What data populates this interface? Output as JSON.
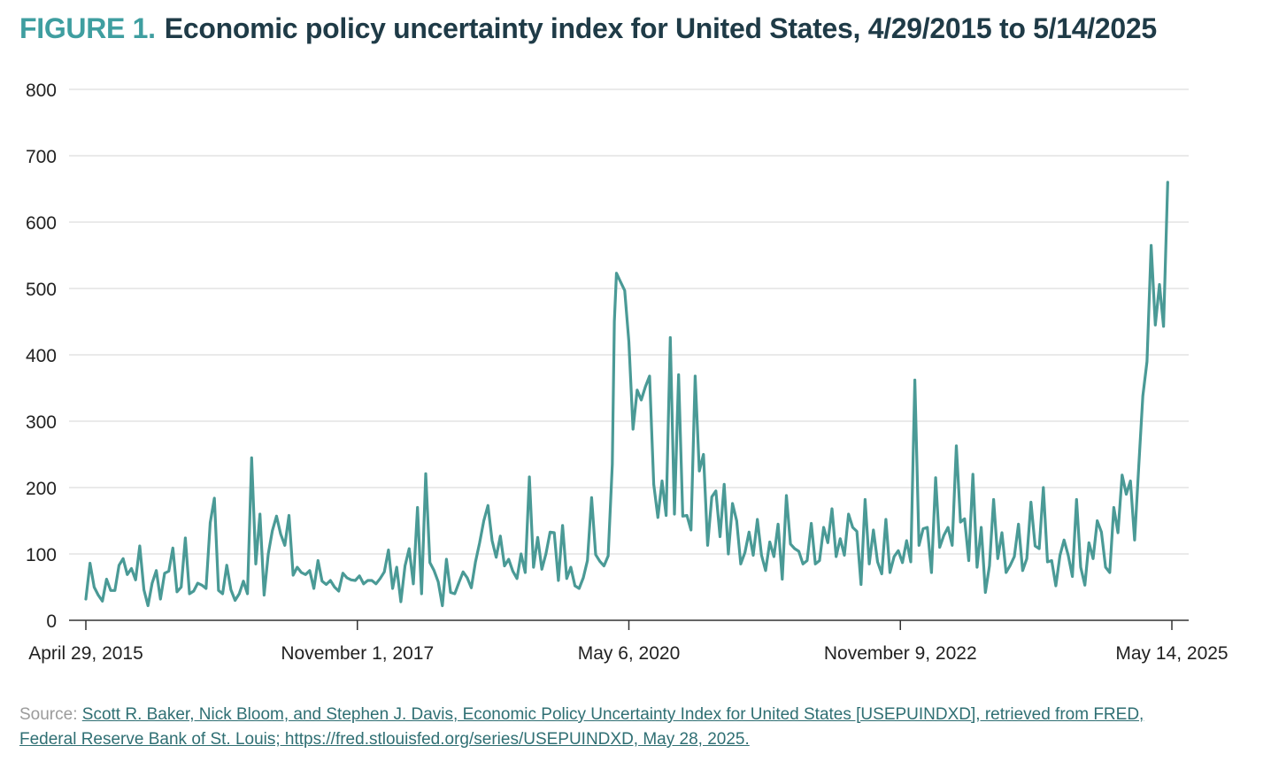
{
  "title": {
    "figure_label": "FIGURE 1.",
    "text": "Economic policy uncertainty index for United States, 4/29/2015 to 5/14/2025"
  },
  "source": {
    "prefix": "Source: ",
    "link_text": "Scott R. Baker, Nick Bloom, and Stephen J. Davis, Economic Policy Uncertainty Index for United States [USEPUINDXD], retrieved from FRED, Federal Reserve Bank of St. Louis; https://fred.stlouisfed.org/series/USEPUINDXD, May 28, 2025."
  },
  "colors": {
    "line": "#4a9a96",
    "grid": "#e3e3e3",
    "axis": "#333333",
    "title_accent": "#3f9ea0",
    "title_main": "#1f3b47"
  },
  "chart_data": {
    "type": "line",
    "xlabel": "",
    "ylabel": "",
    "ylim": [
      0,
      800
    ],
    "yticks": [
      0,
      100,
      200,
      300,
      400,
      500,
      600,
      700,
      800
    ],
    "xlim": [
      "2015-04-29",
      "2025-05-14"
    ],
    "xticks": [
      {
        "date": "2015-04-29",
        "label": "April 29, 2015"
      },
      {
        "date": "2017-11-01",
        "label": "November 1, 2017"
      },
      {
        "date": "2020-05-06",
        "label": "May 6, 2020"
      },
      {
        "date": "2022-11-09",
        "label": "November 9, 2022"
      },
      {
        "date": "2025-05-14",
        "label": "May 14, 2025"
      }
    ],
    "grid": true,
    "series": [
      {
        "points": [
          [
            "2015-04-29",
            32
          ],
          [
            "2015-05-13",
            86
          ],
          [
            "2015-05-27",
            50
          ],
          [
            "2015-06-10",
            38
          ],
          [
            "2015-06-24",
            29
          ],
          [
            "2015-07-08",
            62
          ],
          [
            "2015-07-22",
            45
          ],
          [
            "2015-08-05",
            45
          ],
          [
            "2015-08-19",
            83
          ],
          [
            "2015-09-02",
            93
          ],
          [
            "2015-09-16",
            69
          ],
          [
            "2015-09-30",
            78
          ],
          [
            "2015-10-14",
            61
          ],
          [
            "2015-10-28",
            112
          ],
          [
            "2015-11-11",
            46
          ],
          [
            "2015-11-25",
            22
          ],
          [
            "2015-12-09",
            56
          ],
          [
            "2015-12-23",
            75
          ],
          [
            "2016-01-06",
            32
          ],
          [
            "2016-01-20",
            71
          ],
          [
            "2016-02-03",
            74
          ],
          [
            "2016-02-17",
            109
          ],
          [
            "2016-03-02",
            43
          ],
          [
            "2016-03-16",
            50
          ],
          [
            "2016-03-30",
            124
          ],
          [
            "2016-04-13",
            40
          ],
          [
            "2016-04-27",
            44
          ],
          [
            "2016-05-11",
            56
          ],
          [
            "2016-05-25",
            53
          ],
          [
            "2016-06-08",
            48
          ],
          [
            "2016-06-22",
            147
          ],
          [
            "2016-07-06",
            184
          ],
          [
            "2016-07-20",
            45
          ],
          [
            "2016-08-03",
            40
          ],
          [
            "2016-08-17",
            83
          ],
          [
            "2016-08-31",
            46
          ],
          [
            "2016-09-14",
            30
          ],
          [
            "2016-09-28",
            40
          ],
          [
            "2016-10-12",
            59
          ],
          [
            "2016-10-26",
            40
          ],
          [
            "2016-11-09",
            245
          ],
          [
            "2016-11-23",
            85
          ],
          [
            "2016-12-07",
            160
          ],
          [
            "2016-12-21",
            38
          ],
          [
            "2017-01-04",
            100
          ],
          [
            "2017-01-18",
            135
          ],
          [
            "2017-02-01",
            157
          ],
          [
            "2017-02-15",
            130
          ],
          [
            "2017-03-01",
            113
          ],
          [
            "2017-03-15",
            158
          ],
          [
            "2017-03-29",
            68
          ],
          [
            "2017-04-12",
            80
          ],
          [
            "2017-04-26",
            72
          ],
          [
            "2017-05-10",
            69
          ],
          [
            "2017-05-24",
            75
          ],
          [
            "2017-06-07",
            48
          ],
          [
            "2017-06-21",
            90
          ],
          [
            "2017-07-05",
            59
          ],
          [
            "2017-07-19",
            54
          ],
          [
            "2017-08-02",
            60
          ],
          [
            "2017-08-16",
            50
          ],
          [
            "2017-08-30",
            44
          ],
          [
            "2017-09-13",
            71
          ],
          [
            "2017-09-27",
            64
          ],
          [
            "2017-10-11",
            61
          ],
          [
            "2017-10-25",
            60
          ],
          [
            "2017-11-08",
            67
          ],
          [
            "2017-11-22",
            55
          ],
          [
            "2017-12-06",
            60
          ],
          [
            "2017-12-20",
            60
          ],
          [
            "2018-01-03",
            55
          ],
          [
            "2018-01-17",
            63
          ],
          [
            "2018-01-31",
            73
          ],
          [
            "2018-02-14",
            106
          ],
          [
            "2018-02-28",
            48
          ],
          [
            "2018-03-14",
            80
          ],
          [
            "2018-03-28",
            28
          ],
          [
            "2018-04-11",
            82
          ],
          [
            "2018-04-25",
            108
          ],
          [
            "2018-05-09",
            55
          ],
          [
            "2018-05-23",
            170
          ],
          [
            "2018-06-06",
            40
          ],
          [
            "2018-06-20",
            221
          ],
          [
            "2018-07-04",
            87
          ],
          [
            "2018-07-18",
            75
          ],
          [
            "2018-08-01",
            58
          ],
          [
            "2018-08-15",
            22
          ],
          [
            "2018-08-29",
            92
          ],
          [
            "2018-09-12",
            42
          ],
          [
            "2018-09-26",
            40
          ],
          [
            "2018-10-10",
            57
          ],
          [
            "2018-10-24",
            73
          ],
          [
            "2018-11-07",
            64
          ],
          [
            "2018-11-21",
            49
          ],
          [
            "2018-12-05",
            88
          ],
          [
            "2018-12-19",
            117
          ],
          [
            "2019-01-02",
            150
          ],
          [
            "2019-01-16",
            173
          ],
          [
            "2019-01-30",
            120
          ],
          [
            "2019-02-13",
            95
          ],
          [
            "2019-02-27",
            127
          ],
          [
            "2019-03-13",
            82
          ],
          [
            "2019-03-27",
            92
          ],
          [
            "2019-04-10",
            74
          ],
          [
            "2019-04-24",
            63
          ],
          [
            "2019-05-08",
            100
          ],
          [
            "2019-05-22",
            72
          ],
          [
            "2019-06-05",
            216
          ],
          [
            "2019-06-19",
            80
          ],
          [
            "2019-07-03",
            125
          ],
          [
            "2019-07-17",
            77
          ],
          [
            "2019-07-31",
            100
          ],
          [
            "2019-08-14",
            133
          ],
          [
            "2019-08-28",
            132
          ],
          [
            "2019-09-11",
            60
          ],
          [
            "2019-09-25",
            143
          ],
          [
            "2019-10-09",
            63
          ],
          [
            "2019-10-23",
            80
          ],
          [
            "2019-11-06",
            52
          ],
          [
            "2019-11-20",
            48
          ],
          [
            "2019-12-04",
            64
          ],
          [
            "2019-12-18",
            90
          ],
          [
            "2020-01-01",
            185
          ],
          [
            "2020-01-15",
            99
          ],
          [
            "2020-01-29",
            89
          ],
          [
            "2020-02-12",
            82
          ],
          [
            "2020-02-26",
            97
          ],
          [
            "2020-03-11",
            235
          ],
          [
            "2020-03-18",
            450
          ],
          [
            "2020-03-25",
            523
          ],
          [
            "2020-04-08",
            510
          ],
          [
            "2020-04-22",
            497
          ],
          [
            "2020-05-06",
            420
          ],
          [
            "2020-05-20",
            288
          ],
          [
            "2020-06-03",
            347
          ],
          [
            "2020-06-17",
            332
          ],
          [
            "2020-07-01",
            352
          ],
          [
            "2020-07-15",
            368
          ],
          [
            "2020-07-29",
            205
          ],
          [
            "2020-08-12",
            155
          ],
          [
            "2020-08-26",
            210
          ],
          [
            "2020-09-09",
            158
          ],
          [
            "2020-09-23",
            426
          ],
          [
            "2020-10-07",
            160
          ],
          [
            "2020-10-21",
            370
          ],
          [
            "2020-11-04",
            157
          ],
          [
            "2020-11-18",
            158
          ],
          [
            "2020-12-02",
            136
          ],
          [
            "2020-12-16",
            368
          ],
          [
            "2020-12-30",
            225
          ],
          [
            "2021-01-13",
            250
          ],
          [
            "2021-01-27",
            113
          ],
          [
            "2021-02-10",
            186
          ],
          [
            "2021-02-24",
            195
          ],
          [
            "2021-03-10",
            126
          ],
          [
            "2021-03-24",
            205
          ],
          [
            "2021-04-07",
            100
          ],
          [
            "2021-04-21",
            176
          ],
          [
            "2021-05-05",
            150
          ],
          [
            "2021-05-19",
            85
          ],
          [
            "2021-06-02",
            102
          ],
          [
            "2021-06-16",
            133
          ],
          [
            "2021-06-30",
            98
          ],
          [
            "2021-07-14",
            152
          ],
          [
            "2021-07-28",
            98
          ],
          [
            "2021-08-11",
            75
          ],
          [
            "2021-08-25",
            118
          ],
          [
            "2021-09-08",
            96
          ],
          [
            "2021-09-22",
            145
          ],
          [
            "2021-10-06",
            62
          ],
          [
            "2021-10-20",
            188
          ],
          [
            "2021-11-03",
            115
          ],
          [
            "2021-11-17",
            108
          ],
          [
            "2021-12-01",
            104
          ],
          [
            "2021-12-15",
            85
          ],
          [
            "2021-12-29",
            90
          ],
          [
            "2022-01-12",
            146
          ],
          [
            "2022-01-26",
            85
          ],
          [
            "2022-02-09",
            90
          ],
          [
            "2022-02-23",
            140
          ],
          [
            "2022-03-09",
            117
          ],
          [
            "2022-03-23",
            168
          ],
          [
            "2022-04-06",
            96
          ],
          [
            "2022-04-20",
            123
          ],
          [
            "2022-05-04",
            98
          ],
          [
            "2022-05-18",
            160
          ],
          [
            "2022-06-01",
            140
          ],
          [
            "2022-06-15",
            134
          ],
          [
            "2022-06-29",
            54
          ],
          [
            "2022-07-13",
            182
          ],
          [
            "2022-07-27",
            85
          ],
          [
            "2022-08-10",
            136
          ],
          [
            "2022-08-24",
            88
          ],
          [
            "2022-09-07",
            70
          ],
          [
            "2022-09-21",
            152
          ],
          [
            "2022-10-05",
            72
          ],
          [
            "2022-10-19",
            96
          ],
          [
            "2022-11-02",
            105
          ],
          [
            "2022-11-16",
            87
          ],
          [
            "2022-11-30",
            120
          ],
          [
            "2022-12-14",
            88
          ],
          [
            "2022-12-28",
            362
          ],
          [
            "2023-01-11",
            113
          ],
          [
            "2023-01-25",
            138
          ],
          [
            "2023-02-08",
            140
          ],
          [
            "2023-02-22",
            72
          ],
          [
            "2023-03-08",
            215
          ],
          [
            "2023-03-22",
            110
          ],
          [
            "2023-04-05",
            128
          ],
          [
            "2023-04-19",
            140
          ],
          [
            "2023-05-03",
            113
          ],
          [
            "2023-05-17",
            263
          ],
          [
            "2023-05-31",
            148
          ],
          [
            "2023-06-14",
            153
          ],
          [
            "2023-06-28",
            90
          ],
          [
            "2023-07-12",
            220
          ],
          [
            "2023-07-26",
            80
          ],
          [
            "2023-08-09",
            140
          ],
          [
            "2023-08-23",
            42
          ],
          [
            "2023-09-06",
            82
          ],
          [
            "2023-09-20",
            182
          ],
          [
            "2023-10-04",
            93
          ],
          [
            "2023-10-18",
            132
          ],
          [
            "2023-11-01",
            72
          ],
          [
            "2023-11-15",
            83
          ],
          [
            "2023-11-29",
            96
          ],
          [
            "2023-12-13",
            145
          ],
          [
            "2023-12-27",
            75
          ],
          [
            "2024-01-10",
            93
          ],
          [
            "2024-01-24",
            178
          ],
          [
            "2024-02-07",
            112
          ],
          [
            "2024-02-21",
            108
          ],
          [
            "2024-03-06",
            200
          ],
          [
            "2024-03-20",
            88
          ],
          [
            "2024-04-03",
            90
          ],
          [
            "2024-04-17",
            52
          ],
          [
            "2024-05-01",
            98
          ],
          [
            "2024-05-15",
            121
          ],
          [
            "2024-05-29",
            98
          ],
          [
            "2024-06-12",
            66
          ],
          [
            "2024-06-26",
            182
          ],
          [
            "2024-07-10",
            80
          ],
          [
            "2024-07-24",
            53
          ],
          [
            "2024-08-07",
            117
          ],
          [
            "2024-08-21",
            93
          ],
          [
            "2024-09-04",
            150
          ],
          [
            "2024-09-18",
            133
          ],
          [
            "2024-10-02",
            80
          ],
          [
            "2024-10-16",
            72
          ],
          [
            "2024-10-30",
            170
          ],
          [
            "2024-11-13",
            132
          ],
          [
            "2024-11-27",
            219
          ],
          [
            "2024-12-11",
            190
          ],
          [
            "2024-12-25",
            210
          ],
          [
            "2025-01-08",
            121
          ],
          [
            "2025-01-22",
            230
          ],
          [
            "2025-02-05",
            338
          ],
          [
            "2025-02-19",
            390
          ],
          [
            "2025-03-05",
            565
          ],
          [
            "2025-03-19",
            445
          ],
          [
            "2025-04-02",
            506
          ],
          [
            "2025-04-16",
            443
          ],
          [
            "2025-04-30",
            660
          ]
        ]
      }
    ]
  }
}
